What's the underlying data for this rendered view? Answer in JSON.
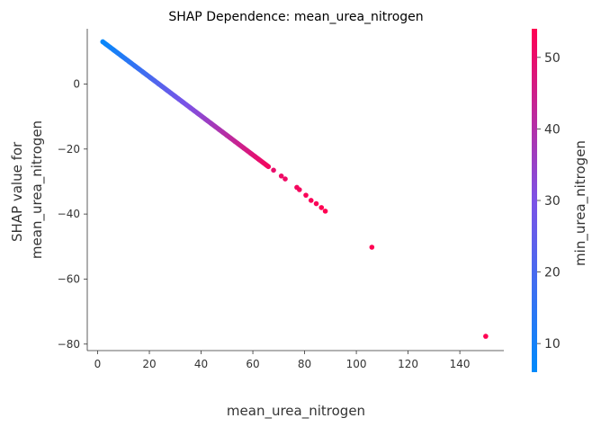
{
  "chart_data": {
    "type": "scatter",
    "title": "SHAP Dependence: mean_urea_nitrogen",
    "xlabel": "mean_urea_nitrogen",
    "ylabel_lines": [
      "SHAP value for",
      "mean_urea_nitrogen"
    ],
    "colorbar_label": "min_urea_nitrogen",
    "xlim": [
      -4,
      157
    ],
    "ylim": [
      -82,
      17
    ],
    "x_ticks": [
      0,
      20,
      40,
      60,
      80,
      100,
      120,
      140
    ],
    "y_ticks": [
      -80,
      -60,
      -40,
      -20,
      0
    ],
    "colorbar_range": [
      6,
      54
    ],
    "colorbar_ticks": [
      10,
      20,
      30,
      40,
      50
    ],
    "colormap": [
      "#008afb",
      "#7c52e6",
      "#ff0052"
    ],
    "line_fit": {
      "x_start": 2,
      "x_end": 66,
      "y_at_zero": 14.2,
      "slope": -0.6,
      "step": 0.5
    },
    "extra_points": [
      [
        68,
        -26.5,
        50
      ],
      [
        71,
        -28.3,
        51
      ],
      [
        72.5,
        -29.2,
        51
      ],
      [
        77,
        -31.8,
        52
      ],
      [
        78,
        -32.5,
        52
      ],
      [
        80.5,
        -34.2,
        53
      ],
      [
        82.5,
        -35.8,
        53
      ],
      [
        84.5,
        -36.8,
        53
      ],
      [
        86.5,
        -38.0,
        54
      ],
      [
        88,
        -39.1,
        54
      ],
      [
        106,
        -50.2,
        54
      ],
      [
        150,
        -77.6,
        54
      ]
    ]
  }
}
